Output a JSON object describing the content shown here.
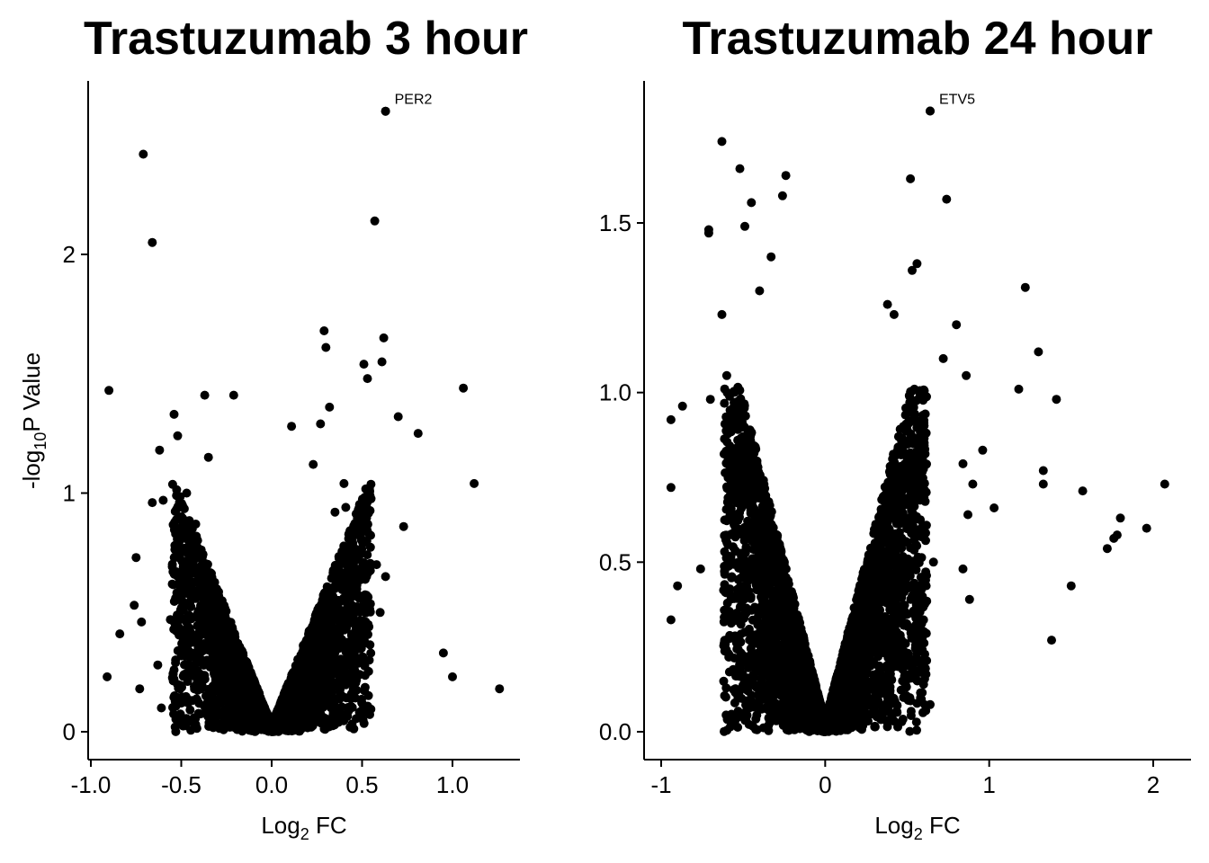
{
  "colors": {
    "points": "#000000",
    "axis": "#000000",
    "background": "#ffffff"
  },
  "chart_data": [
    {
      "type": "scatter",
      "title": "Trastuzumab 3 hour",
      "xlabel": "Log2 FC",
      "xlabel_parts": {
        "base": "Log",
        "sub": "2",
        "rest": " FC"
      },
      "ylabel": "-log10P Value",
      "ylabel_parts": {
        "base": "-log",
        "sub": "10",
        "rest": "P Value"
      },
      "xlim": [
        -0.92,
        1.28
      ],
      "ylim": [
        0,
        2.6
      ],
      "xticks": [
        -1.0,
        -0.5,
        0.0,
        0.5,
        1.0
      ],
      "xtick_labels": [
        "-1.0",
        "-0.5",
        "0.0",
        "0.5",
        "1.0"
      ],
      "yticks": [
        0,
        1,
        2
      ],
      "ytick_labels": [
        "0",
        "1",
        "2"
      ],
      "grid": false,
      "labeled_points": [
        {
          "label": "PER2",
          "x": 0.63,
          "y": 2.6
        }
      ],
      "outliers": [
        [
          0.63,
          2.6
        ],
        [
          -0.71,
          2.42
        ],
        [
          -0.66,
          2.05
        ],
        [
          0.57,
          2.14
        ],
        [
          -0.9,
          1.43
        ],
        [
          0.29,
          1.68
        ],
        [
          0.62,
          1.65
        ],
        [
          0.3,
          1.61
        ],
        [
          0.61,
          1.55
        ],
        [
          0.51,
          1.54
        ],
        [
          0.53,
          1.48
        ],
        [
          1.06,
          1.44
        ],
        [
          -0.37,
          1.41
        ],
        [
          -0.21,
          1.41
        ],
        [
          0.32,
          1.36
        ],
        [
          -0.54,
          1.33
        ],
        [
          0.7,
          1.32
        ],
        [
          0.27,
          1.29
        ],
        [
          0.81,
          1.25
        ],
        [
          -0.52,
          1.24
        ],
        [
          0.11,
          1.28
        ],
        [
          -0.62,
          1.18
        ],
        [
          0.23,
          1.12
        ],
        [
          0.73,
          0.86
        ],
        [
          1.12,
          1.04
        ],
        [
          -0.66,
          0.96
        ],
        [
          -0.6,
          0.97
        ],
        [
          -0.75,
          0.73
        ],
        [
          0.95,
          0.33
        ],
        [
          -0.76,
          0.53
        ],
        [
          -0.84,
          0.41
        ],
        [
          -0.91,
          0.23
        ],
        [
          1.0,
          0.23
        ],
        [
          1.26,
          0.18
        ],
        [
          -0.73,
          0.18
        ],
        [
          -0.61,
          0.1
        ],
        [
          0.63,
          0.65
        ],
        [
          0.46,
          0.67
        ],
        [
          -0.72,
          0.46
        ],
        [
          -0.63,
          0.28
        ],
        [
          0.54,
          0.3
        ],
        [
          0.5,
          0.45
        ],
        [
          0.6,
          0.5
        ],
        [
          0.4,
          1.04
        ],
        [
          -0.35,
          1.15
        ],
        [
          0.35,
          0.92
        ],
        [
          0.41,
          0.94
        ],
        [
          -0.47,
          1.0
        ],
        [
          -0.42,
          0.87
        ],
        [
          0.48,
          0.9
        ],
        [
          -0.46,
          0.6
        ],
        [
          0.44,
          0.14
        ],
        [
          -0.5,
          0.12
        ],
        [
          0.58,
          0.7
        ],
        [
          -0.56,
          0.47
        ]
      ],
      "cloud": {
        "n": 3400,
        "max_abs_x": 0.55,
        "min_abs_x": 0.0,
        "max_y": 1.05,
        "seed": 11
      }
    },
    {
      "type": "scatter",
      "title": "Trastuzumab 24 hour",
      "xlabel": "Log2 FC",
      "xlabel_parts": {
        "base": "Log",
        "sub": "2",
        "rest": " FC"
      },
      "ylabel": "",
      "xlim": [
        -1.0,
        2.2
      ],
      "ylim": [
        0,
        1.83
      ],
      "xticks": [
        -1,
        0,
        1,
        2
      ],
      "xtick_labels": [
        "-1",
        "0",
        "1",
        "2"
      ],
      "yticks": [
        0,
        0.5,
        1.0,
        1.5
      ],
      "ytick_labels": [
        "0.0",
        "0.5",
        "1.0",
        "1.5"
      ],
      "grid": false,
      "labeled_points": [
        {
          "label": "ETV5",
          "x": 0.64,
          "y": 1.83
        }
      ],
      "outliers": [
        [
          0.64,
          1.83
        ],
        [
          -0.63,
          1.74
        ],
        [
          -0.52,
          1.66
        ],
        [
          -0.24,
          1.64
        ],
        [
          0.52,
          1.63
        ],
        [
          -0.26,
          1.58
        ],
        [
          0.74,
          1.57
        ],
        [
          -0.45,
          1.56
        ],
        [
          -0.49,
          1.49
        ],
        [
          -0.71,
          1.48
        ],
        [
          -0.71,
          1.47
        ],
        [
          -0.33,
          1.4
        ],
        [
          0.56,
          1.38
        ],
        [
          0.53,
          1.36
        ],
        [
          1.22,
          1.31
        ],
        [
          -0.63,
          1.23
        ],
        [
          0.8,
          1.2
        ],
        [
          1.3,
          1.12
        ],
        [
          1.18,
          1.01
        ],
        [
          1.41,
          0.98
        ],
        [
          0.96,
          0.83
        ],
        [
          -0.94,
          0.92
        ],
        [
          -0.87,
          0.96
        ],
        [
          -0.7,
          0.98
        ],
        [
          1.33,
          0.77
        ],
        [
          1.33,
          0.73
        ],
        [
          2.07,
          0.73
        ],
        [
          1.57,
          0.71
        ],
        [
          1.03,
          0.66
        ],
        [
          1.8,
          0.63
        ],
        [
          1.78,
          0.58
        ],
        [
          1.76,
          0.57
        ],
        [
          1.72,
          0.54
        ],
        [
          1.96,
          0.6
        ],
        [
          -0.94,
          0.72
        ],
        [
          -0.9,
          0.43
        ],
        [
          -0.94,
          0.33
        ],
        [
          1.5,
          0.43
        ],
        [
          1.38,
          0.27
        ],
        [
          0.64,
          0.08
        ],
        [
          0.6,
          0.14
        ],
        [
          0.88,
          0.39
        ],
        [
          0.84,
          0.48
        ],
        [
          0.87,
          0.64
        ],
        [
          0.9,
          0.73
        ],
        [
          0.84,
          0.79
        ],
        [
          -0.76,
          0.48
        ],
        [
          0.66,
          0.5
        ],
        [
          0.6,
          0.33
        ],
        [
          -0.6,
          1.05
        ],
        [
          0.72,
          1.1
        ],
        [
          0.86,
          1.05
        ],
        [
          -0.4,
          1.3
        ],
        [
          0.38,
          1.26
        ],
        [
          0.42,
          1.23
        ]
      ],
      "cloud": {
        "n": 4800,
        "max_abs_x": 0.62,
        "min_abs_x": 0.0,
        "max_y": 1.02,
        "seed": 29
      }
    }
  ]
}
